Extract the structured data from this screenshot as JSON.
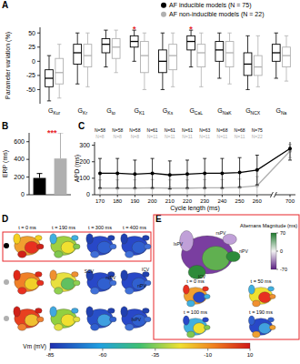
{
  "chart_data": [
    {
      "type": "box",
      "y_label": "Parameter variation (%)",
      "categories": [
        "GKur",
        "GKr",
        "Gto",
        "GK1",
        "GKs",
        "GCaL",
        "GNaK",
        "GNCX",
        "GNa"
      ],
      "legend": "top-right",
      "series": [
        {
          "name": "AF inducible models (N = 75)",
          "color": "#000000",
          "marker": "circle",
          "stats": [
            {
              "min": -70,
              "q1": -45,
              "median": -30,
              "q3": -15,
              "max": 10
            },
            {
              "min": -40,
              "q1": -5,
              "median": 15,
              "q3": 30,
              "max": 50
            },
            {
              "min": -10,
              "q1": 15,
              "median": 30,
              "q3": 40,
              "max": 55
            },
            {
              "min": 0,
              "q1": 25,
              "median": 35,
              "q3": 45,
              "max": 55
            },
            {
              "min": -50,
              "q1": -20,
              "median": 0,
              "q3": 20,
              "max": 50
            },
            {
              "min": -10,
              "q1": 20,
              "median": 35,
              "q3": 45,
              "max": 55
            },
            {
              "min": -30,
              "q1": 0,
              "median": 20,
              "q3": 35,
              "max": 50
            },
            {
              "min": -50,
              "q1": -25,
              "median": -5,
              "q3": 15,
              "max": 45
            },
            {
              "min": -30,
              "q1": 0,
              "median": 15,
              "q3": 30,
              "max": 50
            }
          ]
        },
        {
          "name": "AF non-inducible models (N = 22)",
          "color": "#b0b0b0",
          "marker": "circle",
          "stats": [
            {
              "min": -65,
              "q1": -40,
              "median": -20,
              "q3": 5,
              "max": 30
            },
            {
              "min": -45,
              "q1": -10,
              "median": 10,
              "q3": 30,
              "max": 50
            },
            {
              "min": -20,
              "q1": 5,
              "median": 25,
              "q3": 40,
              "max": 55
            },
            {
              "min": -50,
              "q1": -20,
              "median": 10,
              "q3": 35,
              "max": 50
            },
            {
              "min": -45,
              "q1": -15,
              "median": 10,
              "q3": 30,
              "max": 50
            },
            {
              "min": -45,
              "q1": -10,
              "median": 15,
              "q3": 30,
              "max": 50
            },
            {
              "min": -40,
              "q1": -10,
              "median": 15,
              "q3": 35,
              "max": 50
            },
            {
              "min": -45,
              "q1": -25,
              "median": -10,
              "q3": 10,
              "max": 45
            },
            {
              "min": -35,
              "q1": -10,
              "median": 10,
              "q3": 25,
              "max": 45
            }
          ]
        }
      ],
      "annotations": [
        {
          "text": "*",
          "category": "GK1",
          "color": "#e8262a"
        },
        {
          "text": "*",
          "category": "GCaL",
          "color": "#e8262a"
        }
      ],
      "ylim": [
        -75,
        60
      ],
      "yticks": [
        -50,
        -25,
        0,
        25,
        50
      ],
      "grid": false
    },
    {
      "type": "bar",
      "y_label": "ERP (ms)",
      "categories": [
        null,
        null
      ],
      "values": [
        190,
        410
      ],
      "errors": [
        50,
        290
      ],
      "colors": [
        "#000000",
        "#b0b0b0"
      ],
      "annotations": [
        {
          "text": "***",
          "color": "#e8262a"
        }
      ],
      "ylim": [
        0,
        700
      ],
      "yticks": [
        0,
        200,
        400,
        600
      ],
      "grid": false
    },
    {
      "type": "line",
      "x_label": "Cycle length (ms)",
      "y_label": "APD (ms)",
      "categories": [
        "170",
        "180",
        "190",
        "200",
        "210",
        "220",
        "230",
        "240",
        "250",
        "260",
        "700"
      ],
      "series": [
        {
          "color": "#000000",
          "marker": "circle",
          "line_style": "solid",
          "values": [
            130,
            130,
            125,
            130,
            120,
            125,
            130,
            130,
            135,
            150,
            280
          ],
          "errors": [
            90,
            90,
            85,
            90,
            85,
            85,
            90,
            90,
            90,
            90,
            70
          ],
          "n_labels": [
            "N=58",
            "N=58",
            "N=58",
            "N=61",
            "N=61",
            "N=61",
            "N=63",
            "N=68",
            "N=68",
            "N=75",
            null
          ]
        },
        {
          "color": "#b0b0b0",
          "marker": "circle",
          "line_style": "solid",
          "values": [
            40,
            40,
            40,
            42,
            40,
            40,
            42,
            42,
            45,
            55,
            265
          ],
          "errors": [
            50,
            50,
            50,
            50,
            50,
            50,
            50,
            50,
            50,
            55,
            40
          ],
          "n_labels": [
            "N=8",
            "N=8",
            "N=8",
            "N=11",
            "N=11",
            "N=11",
            "N=11",
            "N=11",
            "N=11",
            "N=22",
            null
          ]
        }
      ],
      "ylim": [
        0,
        320
      ],
      "yticks": [
        0,
        100,
        200,
        300
      ],
      "grid": false
    }
  ],
  "figure": {
    "panel_labels": [
      "A",
      "B",
      "C",
      "D",
      "E"
    ],
    "panel_d": {
      "times": [
        "t = 0 ms",
        "t = 190 ms",
        "t = 300 ms",
        "t = 400 ms"
      ],
      "row_colors": [
        "#000000",
        "#b0b0b0",
        "#b0b0b0"
      ],
      "labels": [
        "SCV",
        "rsPV",
        "ICV",
        "riPV",
        "lsPV"
      ]
    },
    "panel_e": {
      "labels": [
        "rsPV",
        "riPV",
        "lsPV",
        "ICV"
      ],
      "times": [
        "t = 0 ms",
        "t = 50 ms",
        "t = 100 ms",
        "t = 190 ms"
      ],
      "color_bar": {
        "label": "Alternans Magnitude (ms)",
        "range": [
          -70,
          70
        ],
        "ticks": [
          -70,
          0,
          70
        ]
      }
    },
    "vm_color_bar": {
      "label": "Vm (mV)",
      "range": [
        -85,
        10
      ],
      "ticks": [
        -85,
        -60,
        -35,
        -10,
        10
      ]
    }
  }
}
